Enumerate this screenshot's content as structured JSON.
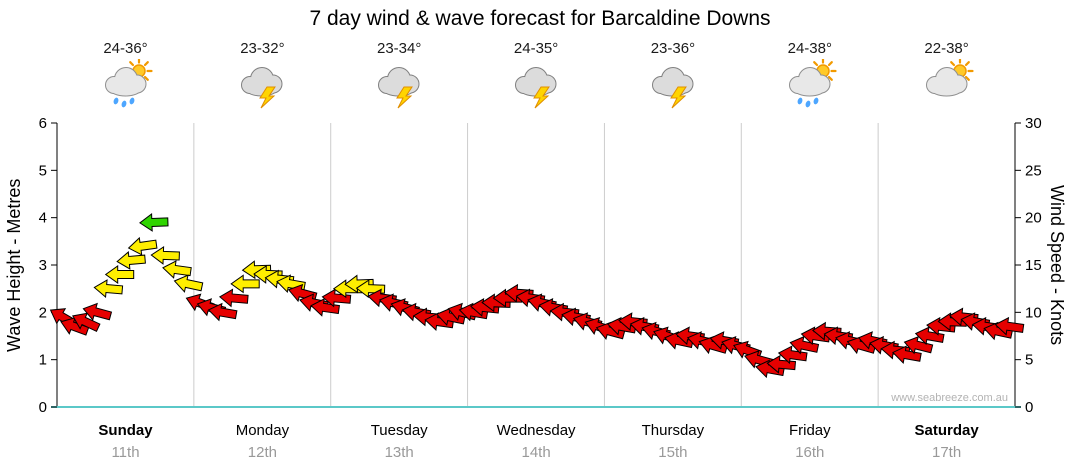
{
  "title": "7 day wind & wave forecast for Barcaldine Downs",
  "watermark": "www.seabreeze.com.au",
  "days": [
    {
      "name": "Sunday",
      "date": "11th",
      "temp": "24-36°",
      "icon": "sun-shower",
      "bold": true
    },
    {
      "name": "Monday",
      "date": "12th",
      "temp": "23-32°",
      "icon": "storm",
      "bold": false
    },
    {
      "name": "Tuesday",
      "date": "13th",
      "temp": "23-34°",
      "icon": "storm",
      "bold": false
    },
    {
      "name": "Wednesday",
      "date": "14th",
      "temp": "24-35°",
      "icon": "storm",
      "bold": false
    },
    {
      "name": "Thursday",
      "date": "15th",
      "temp": "23-36°",
      "icon": "storm",
      "bold": false
    },
    {
      "name": "Friday",
      "date": "16th",
      "temp": "24-38°",
      "icon": "sun-shower",
      "bold": false
    },
    {
      "name": "Saturday",
      "date": "17th",
      "temp": "22-38°",
      "icon": "sun-cloud",
      "bold": true
    }
  ],
  "chart_data": {
    "type": "wind-arrow-timeseries",
    "title": "7 day wind & wave forecast for Barcaldine Downs",
    "ylabel_left": "Wave Height - Metres",
    "ylabel_right": "Wind Speed - Knots",
    "y_left_range": [
      0,
      6
    ],
    "y_right_range": [
      0,
      30
    ],
    "y_left_ticks": [
      0,
      1,
      2,
      3,
      4,
      5,
      6
    ],
    "y_right_ticks": [
      0,
      5,
      10,
      15,
      20,
      25,
      30
    ],
    "categories": [
      "Sunday 11th",
      "Monday 12th",
      "Tuesday 13th",
      "Wednesday 14th",
      "Thursday 15th",
      "Friday 16th",
      "Saturday 17th"
    ],
    "points_per_day": 12,
    "wind_speed_knots": [
      9.5,
      8.5,
      9,
      10,
      12.5,
      14,
      15.5,
      17,
      19.5,
      16,
      14.5,
      13,
      11,
      10.5,
      10,
      11.5,
      13,
      14.5,
      14,
      13.5,
      13,
      12,
      11,
      10.5,
      11.5,
      12.5,
      13,
      12.5,
      11.5,
      11,
      10.5,
      10,
      9.5,
      9,
      9.5,
      10,
      10,
      10.5,
      11,
      11.5,
      12,
      11.5,
      11,
      10.5,
      10,
      9.5,
      9,
      8.5,
      8,
      8.5,
      9,
      8.5,
      8,
      7.5,
      7,
      7.5,
      7,
      6.5,
      7,
      6.5,
      6,
      5,
      4,
      4.5,
      5.5,
      6.5,
      7.5,
      8,
      7.5,
      7,
      6.5,
      7,
      6.5,
      6,
      5.5,
      6.5,
      7.5,
      8.5,
      9,
      9.5,
      9,
      8.5,
      8,
      8.5
    ],
    "wind_direction_deg": [
      210,
      200,
      205,
      195,
      185,
      180,
      175,
      172,
      178,
      182,
      188,
      192,
      200,
      195,
      190,
      185,
      180,
      178,
      182,
      186,
      190,
      195,
      192,
      188,
      185,
      180,
      178,
      182,
      188,
      192,
      195,
      190,
      185,
      188,
      192,
      195,
      190,
      186,
      182,
      180,
      184,
      188,
      192,
      190,
      186,
      190,
      194,
      198,
      195,
      190,
      186,
      190,
      194,
      198,
      192,
      188,
      192,
      196,
      190,
      194,
      200,
      195,
      190,
      185,
      188,
      192,
      188,
      184,
      188,
      192,
      196,
      192,
      190,
      186,
      190,
      194,
      190,
      186,
      182,
      186,
      190,
      188,
      192,
      188
    ],
    "speed_colors": {
      "green_min": 18,
      "yellow_min": 12.5,
      "red": "#e60000",
      "yellow": "#ffee00",
      "green": "#2fd400"
    },
    "axis_colors": {
      "grid": "#cccccc",
      "baseline": "#5bc8c8",
      "axis": "#000000"
    },
    "legend_position": "none",
    "grid": "vertical-day-separators"
  }
}
